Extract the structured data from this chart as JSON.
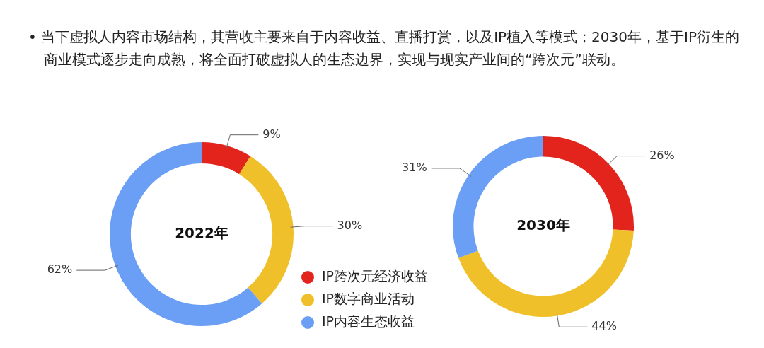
{
  "chart_data": [
    {
      "type": "donut",
      "title": "2022年",
      "annotations": [
        "• 当下虚拟人内容市场结构，其营收主要来自于内容收益、直播打赏，以及IP植入等模式；2030年，基于IP衍生的商业模式逐步走向成熟，将全面打破虚拟人的生态边界，实现与现实产业间的“跨次元”联动。"
      ],
      "categories": [
        "IP跨次元经济收益",
        "IP数字商业活动",
        "IP内容生态收益"
      ],
      "values": [
        9,
        30,
        62
      ],
      "value_labels": [
        "9%",
        "30%",
        "62%"
      ],
      "colors": [
        "#e3241d",
        "#f0c02b",
        "#6a9ff5"
      ],
      "legend": "right"
    },
    {
      "type": "donut",
      "title": "2030年",
      "categories": [
        null,
        null,
        null
      ],
      "values": [
        26,
        44,
        31
      ],
      "value_labels": [
        "26%",
        "44%",
        "31%"
      ],
      "colors": [
        "#e3241d",
        "#f0c02b",
        "#6a9ff5"
      ]
    }
  ]
}
